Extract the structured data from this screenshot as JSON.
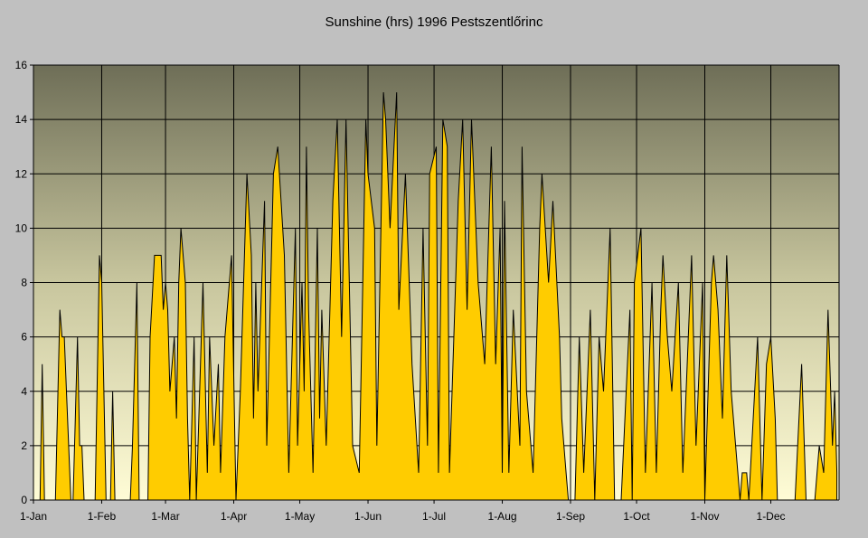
{
  "chart_data": {
    "type": "area",
    "title": "Sunshine (hrs) 1996 Pestszentlőrinc",
    "xlabel": "",
    "ylabel": "",
    "ylim": [
      0,
      16
    ],
    "yticks": [
      0,
      2,
      4,
      6,
      8,
      10,
      12,
      14,
      16
    ],
    "xlim_days": [
      0,
      366
    ],
    "xtick_days": [
      0,
      31,
      60,
      91,
      121,
      152,
      182,
      213,
      244,
      274,
      305,
      335
    ],
    "xtick_labels": [
      "1-Jan",
      "1-Feb",
      "1-Mar",
      "1-Apr",
      "1-May",
      "1-Jun",
      "1-Jul",
      "1-Aug",
      "1-Sep",
      "1-Oct",
      "1-Nov",
      "1-Dec"
    ],
    "grid": true,
    "legend": "none",
    "fill_color": "#ffcc00",
    "series": [
      {
        "name": "Sunshine (hrs)",
        "points_day_hours": [
          [
            0,
            0
          ],
          [
            3,
            0
          ],
          [
            4,
            5
          ],
          [
            5,
            0
          ],
          [
            10,
            0
          ],
          [
            12,
            7
          ],
          [
            13,
            6
          ],
          [
            14,
            6
          ],
          [
            15,
            4
          ],
          [
            17,
            0
          ],
          [
            18,
            0
          ],
          [
            19,
            3
          ],
          [
            20,
            6
          ],
          [
            21,
            2
          ],
          [
            22,
            2
          ],
          [
            23,
            0
          ],
          [
            28,
            0
          ],
          [
            30,
            9
          ],
          [
            31,
            8
          ],
          [
            33,
            0
          ],
          [
            35,
            0
          ],
          [
            36,
            4
          ],
          [
            37,
            0
          ],
          [
            44,
            0
          ],
          [
            45,
            2
          ],
          [
            47,
            8
          ],
          [
            48,
            0
          ],
          [
            52,
            0
          ],
          [
            53,
            6
          ],
          [
            55,
            9
          ],
          [
            58,
            9
          ],
          [
            59,
            7
          ],
          [
            60,
            8
          ],
          [
            61,
            7
          ],
          [
            62,
            4
          ],
          [
            64,
            6
          ],
          [
            65,
            3
          ],
          [
            66,
            8
          ],
          [
            67,
            10
          ],
          [
            69,
            8
          ],
          [
            70,
            3
          ],
          [
            71,
            0
          ],
          [
            73,
            6
          ],
          [
            74,
            0
          ],
          [
            77,
            8
          ],
          [
            79,
            1
          ],
          [
            80,
            6
          ],
          [
            82,
            2
          ],
          [
            84,
            5
          ],
          [
            85,
            1
          ],
          [
            87,
            6
          ],
          [
            90,
            9
          ],
          [
            92,
            0
          ],
          [
            94,
            4
          ],
          [
            97,
            12
          ],
          [
            99,
            9
          ],
          [
            100,
            3
          ],
          [
            101,
            8
          ],
          [
            102,
            4
          ],
          [
            105,
            11
          ],
          [
            106,
            2
          ],
          [
            109,
            12
          ],
          [
            111,
            13
          ],
          [
            114,
            9
          ],
          [
            116,
            1
          ],
          [
            119,
            10
          ],
          [
            120,
            2
          ],
          [
            122,
            8
          ],
          [
            123,
            4
          ],
          [
            124,
            13
          ],
          [
            125,
            7
          ],
          [
            127,
            1
          ],
          [
            129,
            10
          ],
          [
            130,
            3
          ],
          [
            131,
            7
          ],
          [
            133,
            2
          ],
          [
            136,
            11
          ],
          [
            138,
            14
          ],
          [
            140,
            6
          ],
          [
            142,
            14
          ],
          [
            143,
            10
          ],
          [
            145,
            2
          ],
          [
            148,
            1
          ],
          [
            151,
            14
          ],
          [
            152,
            12
          ],
          [
            155,
            10
          ],
          [
            156,
            2
          ],
          [
            159,
            15
          ],
          [
            160,
            14
          ],
          [
            162,
            10
          ],
          [
            165,
            15
          ],
          [
            166,
            7
          ],
          [
            169,
            12
          ],
          [
            172,
            5
          ],
          [
            175,
            1
          ],
          [
            177,
            10
          ],
          [
            179,
            2
          ],
          [
            180,
            12
          ],
          [
            183,
            13
          ],
          [
            184,
            1
          ],
          [
            186,
            14
          ],
          [
            188,
            13
          ],
          [
            189,
            1
          ],
          [
            193,
            11
          ],
          [
            195,
            14
          ],
          [
            197,
            7
          ],
          [
            199,
            14
          ],
          [
            202,
            8
          ],
          [
            205,
            5
          ],
          [
            208,
            13
          ],
          [
            210,
            5
          ],
          [
            212,
            10
          ],
          [
            213,
            1
          ],
          [
            214,
            11
          ],
          [
            216,
            1
          ],
          [
            218,
            7
          ],
          [
            221,
            2
          ],
          [
            222,
            13
          ],
          [
            224,
            4
          ],
          [
            227,
            1
          ],
          [
            230,
            10
          ],
          [
            231,
            12
          ],
          [
            234,
            8
          ],
          [
            236,
            11
          ],
          [
            239,
            6
          ],
          [
            240,
            3
          ],
          [
            242,
            1
          ],
          [
            243,
            0
          ],
          [
            246,
            0
          ],
          [
            248,
            6
          ],
          [
            250,
            1
          ],
          [
            253,
            7
          ],
          [
            255,
            0
          ],
          [
            257,
            6
          ],
          [
            259,
            4
          ],
          [
            262,
            10
          ],
          [
            264,
            0
          ],
          [
            267,
            0
          ],
          [
            271,
            7
          ],
          [
            272,
            0
          ],
          [
            273,
            8
          ],
          [
            276,
            10
          ],
          [
            278,
            1
          ],
          [
            281,
            8
          ],
          [
            283,
            1
          ],
          [
            285,
            7
          ],
          [
            286,
            9
          ],
          [
            288,
            6
          ],
          [
            290,
            4
          ],
          [
            293,
            8
          ],
          [
            295,
            1
          ],
          [
            299,
            9
          ],
          [
            301,
            2
          ],
          [
            304,
            8
          ],
          [
            305,
            0
          ],
          [
            308,
            8
          ],
          [
            309,
            9
          ],
          [
            311,
            7
          ],
          [
            313,
            3
          ],
          [
            315,
            9
          ],
          [
            317,
            4
          ],
          [
            319,
            2
          ],
          [
            321,
            0
          ],
          [
            322,
            1
          ],
          [
            324,
            1
          ],
          [
            325,
            0
          ],
          [
            329,
            6
          ],
          [
            331,
            0
          ],
          [
            333,
            5
          ],
          [
            335,
            6
          ],
          [
            337,
            3
          ],
          [
            338,
            0
          ],
          [
            346,
            0
          ],
          [
            349,
            5
          ],
          [
            351,
            0
          ],
          [
            355,
            0
          ],
          [
            357,
            2
          ],
          [
            359,
            1
          ],
          [
            361,
            7
          ],
          [
            363,
            2
          ],
          [
            364,
            4
          ],
          [
            365,
            1
          ]
        ]
      }
    ]
  }
}
